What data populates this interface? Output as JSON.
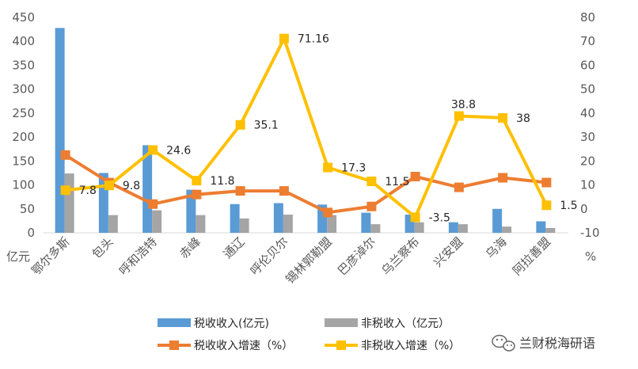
{
  "chart_data": {
    "type": "bar",
    "title": "",
    "categories": [
      "鄂尔多斯",
      "包头",
      "呼和浩特",
      "赤峰",
      "通辽",
      "呼伦贝尔",
      "锡林郭勒盟",
      "巴彦淖尔",
      "乌兰察布",
      "兴安盟",
      "乌海",
      "阿拉善盟"
    ],
    "series": [
      {
        "name": "税收收入(亿元)",
        "kind": "bar",
        "axis": "left",
        "color": "#5B9BD5",
        "values": [
          428,
          125,
          183,
          90,
          60,
          62,
          59,
          42,
          38,
          22,
          50,
          24
        ]
      },
      {
        "name": "非税收入（亿元）",
        "kind": "bar",
        "axis": "left",
        "color": "#A5A5A5",
        "values": [
          124,
          37,
          47,
          37,
          30,
          38,
          37,
          18,
          22,
          18,
          13,
          10
        ]
      },
      {
        "name": "税收收入增速（%）",
        "kind": "line",
        "axis": "right",
        "color": "#ED7D31",
        "values": [
          22.5,
          11,
          2,
          6,
          7.5,
          7.5,
          -1.5,
          1,
          13.5,
          9,
          13,
          11
        ]
      },
      {
        "name": "非税收入增速（%）",
        "kind": "line",
        "axis": "right",
        "color": "#FFC000",
        "values": [
          7.8,
          9.8,
          24.6,
          11.8,
          35.1,
          71.16,
          17.3,
          11.5,
          -3.5,
          38.8,
          38,
          1.5
        ],
        "labels": [
          "7.8",
          "9.8",
          "24.6",
          "11.8",
          "35.1",
          "71.16",
          "17.3",
          "11.5",
          "-3.5",
          "38.8",
          "38",
          "1.5"
        ]
      }
    ],
    "y_left": {
      "min": 0,
      "max": 450,
      "step": 50,
      "unit": "亿元",
      "ticks": [
        "0",
        "50",
        "100",
        "150",
        "200",
        "250",
        "300",
        "350",
        "400",
        "450"
      ]
    },
    "y_right": {
      "min": -10,
      "max": 80,
      "step": 10,
      "unit": "%",
      "ticks": [
        "-10",
        "0",
        "10",
        "20",
        "30",
        "40",
        "50",
        "60",
        "70",
        "80"
      ]
    },
    "grid": false,
    "legend_position": "bottom"
  },
  "watermark": {
    "text": "兰财税海研语",
    "icon": "wechat-icon"
  }
}
